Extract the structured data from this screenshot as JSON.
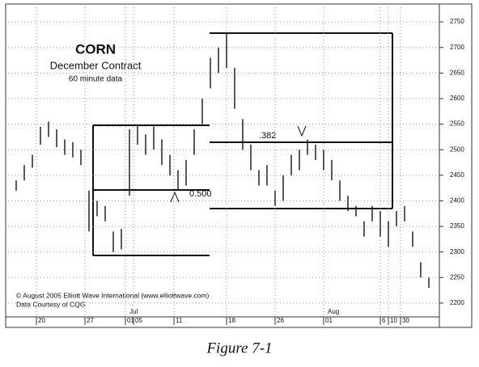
{
  "chart_data": {
    "type": "ohlc",
    "title": "CORN",
    "subtitle": "December Contract",
    "note": "60 minute data",
    "x": [
      0,
      2,
      4,
      6,
      8,
      10,
      12,
      14,
      16,
      18,
      20,
      22,
      24,
      26,
      28,
      30,
      32,
      34,
      36,
      38,
      40,
      42,
      44,
      46,
      48,
      50,
      52,
      54,
      56,
      58,
      60,
      62,
      64,
      66,
      68,
      70,
      72,
      74,
      76,
      78,
      80,
      82,
      84,
      86,
      88,
      90,
      92,
      94,
      96,
      98,
      100,
      102
    ],
    "high": [
      2440,
      2470,
      2490,
      2545,
      2555,
      2540,
      2520,
      2515,
      2500,
      2420,
      2400,
      2390,
      2340,
      2345,
      2540,
      2550,
      2530,
      2545,
      2520,
      2490,
      2460,
      2480,
      2540,
      2600,
      2680,
      2700,
      2730,
      2660,
      2560,
      2510,
      2460,
      2470,
      2420,
      2450,
      2490,
      2500,
      2520,
      2510,
      2500,
      2480,
      2440,
      2410,
      2390,
      2360,
      2390,
      2380,
      2360,
      2380,
      2390,
      2340,
      2280,
      2250
    ],
    "low": [
      2420,
      2440,
      2465,
      2510,
      2525,
      2505,
      2490,
      2485,
      2470,
      2340,
      2370,
      2360,
      2300,
      2305,
      2410,
      2510,
      2490,
      2500,
      2470,
      2450,
      2420,
      2430,
      2490,
      2550,
      2620,
      2650,
      2660,
      2580,
      2500,
      2460,
      2430,
      2430,
      2390,
      2400,
      2450,
      2460,
      2490,
      2480,
      2460,
      2440,
      2400,
      2380,
      2370,
      2330,
      2360,
      2330,
      2310,
      2350,
      2360,
      2310,
      2250,
      2230
    ],
    "color": "#222222",
    "xlim": [
      -2,
      104
    ],
    "xticks": [
      {
        "value": 5,
        "label": "20"
      },
      {
        "value": 17,
        "label": "27"
      },
      {
        "value": 27,
        "label": "01"
      },
      {
        "value": 29,
        "label": "05"
      },
      {
        "value": 39,
        "label": "11"
      },
      {
        "value": 52,
        "label": "18"
      },
      {
        "value": 64,
        "label": "26"
      },
      {
        "value": 76,
        "label": "01"
      },
      {
        "value": 90,
        "label": "6"
      },
      {
        "value": 92,
        "label": "10"
      },
      {
        "value": 95,
        "label": "30"
      }
    ],
    "month_ticks": [
      {
        "value": 28,
        "label": "Jul"
      },
      {
        "value": 77,
        "label": "Aug"
      }
    ],
    "ylim": [
      2173,
      2785
    ],
    "yticks": [
      2200,
      2250,
      2300,
      2350,
      2400,
      2450,
      2500,
      2550,
      2600,
      2650,
      2700,
      2750
    ],
    "annotations": [
      ".382",
      "0.500"
    ],
    "copyright": "© August 2005 Elliott Wave International (www.elliottwave.com)",
    "source": "Data Courtesy of CQG"
  },
  "caption": "Figure 7-1"
}
